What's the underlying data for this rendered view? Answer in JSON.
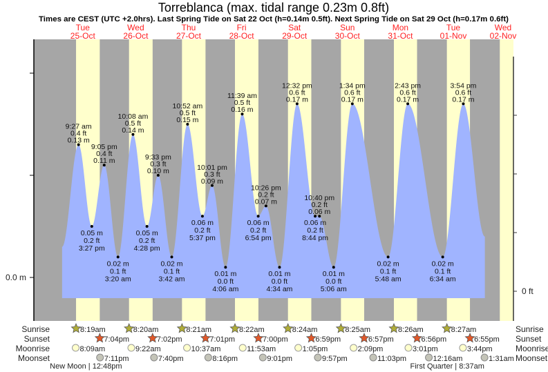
{
  "title": "Torreblanca (max. tidal range 0.23m 0.8ft)",
  "subtitle": "Times are CEST (UTC +2.0hrs). Last Spring Tide on Sat 22 Oct (h=0.14m 0.5ft). Next Spring Tide on Sat 29 Oct (h=0.17m 0.6ft)",
  "colors": {
    "night": "#a6a6a6",
    "day": "#ffffcc",
    "water": "#a0b4ff",
    "day_label": "#ff2020",
    "sunrise": "#b0ad38",
    "sunset": "#e0582a",
    "moonrise": "#ffffcc",
    "moonset": "#c4c4b8"
  },
  "row_labels": {
    "sunrise": "Sunrise",
    "sunset": "Sunset",
    "moonrise": "Moonrise",
    "moonset": "Moonset"
  },
  "chart_data": {
    "type": "area",
    "title": "Torreblanca (max. tidal range 0.23m 0.8ft)",
    "y_left_label": "0.0 m",
    "y_right_label": "0 ft",
    "ylim_m": [
      -0.02,
      0.24
    ],
    "days": [
      {
        "dow": "Tue",
        "date": "25-Oct",
        "sunrise": "8:19am",
        "sunset": "7:04pm"
      },
      {
        "dow": "Wed",
        "date": "26-Oct",
        "sunrise": "8:20am",
        "sunset": "7:02pm"
      },
      {
        "dow": "Thu",
        "date": "27-Oct",
        "sunrise": "8:21am",
        "sunset": "7:01pm"
      },
      {
        "dow": "Fri",
        "date": "28-Oct",
        "sunrise": "8:22am",
        "sunset": "7:00pm"
      },
      {
        "dow": "Sat",
        "date": "29-Oct",
        "sunrise": "8:24am",
        "sunset": "6:59pm"
      },
      {
        "dow": "Sun",
        "date": "30-Oct",
        "sunrise": "8:25am",
        "sunset": "6:57pm"
      },
      {
        "dow": "Mon",
        "date": "31-Oct",
        "sunrise": "8:26am",
        "sunset": "6:56pm"
      },
      {
        "dow": "Tue",
        "date": "01-Nov",
        "sunrise": "8:27am",
        "sunset": "6:55pm"
      },
      {
        "dow": "Wed",
        "date": "02-Nov"
      }
    ],
    "moonrise": [
      {
        "day": 0,
        "time": "8:09am"
      },
      {
        "day": 1,
        "time": "9:22am"
      },
      {
        "day": 2,
        "time": "10:37am"
      },
      {
        "day": 3,
        "time": "11:53am"
      },
      {
        "day": 4,
        "time": "1:05pm"
      },
      {
        "day": 5,
        "time": "2:09pm"
      },
      {
        "day": 6,
        "time": "3:01pm"
      },
      {
        "day": 7,
        "time": "3:44pm"
      }
    ],
    "moonset": [
      {
        "day": 0,
        "time": "7:11pm"
      },
      {
        "day": 1,
        "time": "7:40pm"
      },
      {
        "day": 2,
        "time": "8:16pm"
      },
      {
        "day": 3,
        "time": "9:01pm"
      },
      {
        "day": 4,
        "time": "9:57pm"
      },
      {
        "day": 5,
        "time": "11:03pm"
      },
      {
        "day": 7,
        "time": "12:16am"
      },
      {
        "day": 8,
        "time": "1:31am"
      }
    ],
    "moon_phases": [
      {
        "day": 0,
        "time": "12:48pm",
        "label": "New Moon | 12:48pm"
      },
      {
        "day": 7,
        "time": "8:37am",
        "label": "First Quarter | 8:37am"
      }
    ],
    "series_start": {
      "day": 0,
      "time": "2:00am",
      "m": 0.03
    },
    "series_end": {
      "day": 8,
      "time": "1:40am",
      "m": 0.04
    },
    "tides": [
      {
        "day": 0,
        "type": "high",
        "time": "9:27 am",
        "ft": "0.4 ft",
        "m": "0.13 m"
      },
      {
        "day": 0,
        "type": "low",
        "time": "3:27 pm",
        "ft": "0.2 ft",
        "m": "0.05 m"
      },
      {
        "day": 0,
        "type": "high",
        "time": "9:05 pm",
        "ft": "0.4 ft",
        "m": "0.11 m"
      },
      {
        "day": 1,
        "type": "low",
        "time": "3:20 am",
        "ft": "0.1 ft",
        "m": "0.02 m"
      },
      {
        "day": 1,
        "type": "high",
        "time": "10:08 am",
        "ft": "0.5 ft",
        "m": "0.14 m"
      },
      {
        "day": 1,
        "type": "low",
        "time": "4:28 pm",
        "ft": "0.2 ft",
        "m": "0.05 m"
      },
      {
        "day": 1,
        "type": "high",
        "time": "9:33 pm",
        "ft": "0.3 ft",
        "m": "0.10 m"
      },
      {
        "day": 2,
        "type": "low",
        "time": "3:42 am",
        "ft": "0.1 ft",
        "m": "0.02 m"
      },
      {
        "day": 2,
        "type": "high",
        "time": "10:52 am",
        "ft": "0.5 ft",
        "m": "0.15 m"
      },
      {
        "day": 2,
        "type": "low",
        "time": "5:37 pm",
        "ft": "0.2 ft",
        "m": "0.06 m"
      },
      {
        "day": 2,
        "type": "high",
        "time": "10:01 pm",
        "ft": "0.3 ft",
        "m": "0.09 m"
      },
      {
        "day": 3,
        "type": "low",
        "time": "4:06 am",
        "ft": "0.0 ft",
        "m": "0.01 m"
      },
      {
        "day": 3,
        "type": "high",
        "time": "11:39 am",
        "ft": "0.5 ft",
        "m": "0.16 m"
      },
      {
        "day": 3,
        "type": "low",
        "time": "6:54 pm",
        "ft": "0.2 ft",
        "m": "0.06 m"
      },
      {
        "day": 3,
        "type": "high",
        "time": "10:26 pm",
        "ft": "0.2 ft",
        "m": "0.07 m"
      },
      {
        "day": 4,
        "type": "low",
        "time": "4:34 am",
        "ft": "0.0 ft",
        "m": "0.01 m"
      },
      {
        "day": 4,
        "type": "high",
        "time": "12:32 pm",
        "ft": "0.6 ft",
        "m": "0.17 m"
      },
      {
        "day": 4,
        "type": "low",
        "time": "8:44 pm",
        "ft": "0.2 ft",
        "m": "0.06 m"
      },
      {
        "day": 4,
        "type": "high",
        "time": "10:40 pm",
        "ft": "0.2 ft",
        "m": "0.06 m"
      },
      {
        "day": 5,
        "type": "low",
        "time": "5:06 am",
        "ft": "0.0 ft",
        "m": "0.01 m"
      },
      {
        "day": 5,
        "type": "high",
        "time": "1:34 pm",
        "ft": "0.6 ft",
        "m": "0.17 m"
      },
      {
        "day": 6,
        "type": "low",
        "time": "5:48 am",
        "ft": "0.1 ft",
        "m": "0.02 m"
      },
      {
        "day": 6,
        "type": "high",
        "time": "2:43 pm",
        "ft": "0.6 ft",
        "m": "0.17 m"
      },
      {
        "day": 7,
        "type": "low",
        "time": "6:34 am",
        "ft": "0.1 ft",
        "m": "0.02 m"
      },
      {
        "day": 7,
        "type": "high",
        "time": "3:54 pm",
        "ft": "0.6 ft",
        "m": "0.17 m"
      }
    ]
  }
}
